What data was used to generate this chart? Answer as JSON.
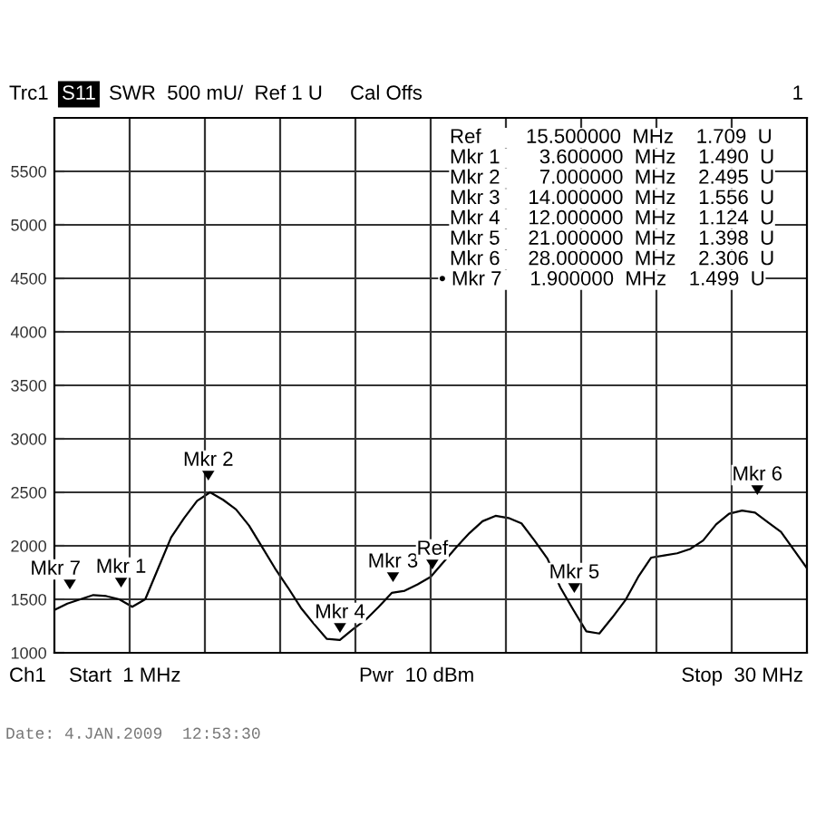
{
  "chart_data": {
    "type": "line",
    "categories": [
      null,
      null,
      null,
      null,
      null,
      null,
      null,
      null,
      null,
      null,
      null,
      null,
      null,
      null,
      null,
      null,
      null,
      null,
      null,
      null,
      null,
      null,
      null,
      null,
      null,
      null,
      null,
      null,
      null,
      null,
      null,
      null,
      null,
      null,
      null,
      null,
      null,
      null,
      null,
      null,
      null,
      null,
      null,
      null,
      null,
      null,
      null,
      null,
      null,
      null,
      null,
      null,
      null,
      null,
      null,
      null,
      null,
      null,
      null
    ],
    "series": [
      {
        "color": "#000000",
        "values": [
          1400,
          1460,
          1500,
          1540,
          1530,
          1500,
          1430,
          1500,
          1790,
          2080,
          2260,
          2420,
          2500,
          2430,
          2340,
          2190,
          1990,
          1790,
          1610,
          1420,
          1270,
          1130,
          1120,
          1220,
          1310,
          1430,
          1560,
          1580,
          1640,
          1710,
          1850,
          1990,
          2120,
          2230,
          2280,
          2260,
          2210,
          2050,
          1880,
          1610,
          1400,
          1200,
          1180,
          1330,
          1490,
          1710,
          1890,
          1910,
          1930,
          1970,
          2050,
          2200,
          2300,
          2330,
          2310,
          2220,
          2130,
          1960,
          1790
        ]
      }
    ],
    "ylim": [
      1000,
      6000
    ],
    "yticks": [
      1000,
      1500,
      2000,
      2500,
      3000,
      3500,
      4000,
      4500,
      5000,
      5500
    ],
    "grid": true,
    "legend": false,
    "annotations": [
      "Trc1",
      "S11",
      "SWR  500 mU/  Ref 1 U",
      "Cal Offs",
      "1",
      "Ref        15.500000  MHz    1.709  U",
      "Mkr 1       3.600000  MHz    1.490  U",
      "Mkr 2       7.000000  MHz    2.495  U",
      "Mkr 3     14.000000  MHz    1.556  U",
      "Mkr 4     12.000000  MHz    1.124  U",
      "Mkr 5     21.000000  MHz    1.398  U",
      "Mkr 6     28.000000  MHz    2.306  U",
      "• Mkr 7     1.900000  MHz    1.499  U",
      "Ch1",
      "Start  1 MHz",
      "Pwr  10 dBm",
      "Stop  30 MHz",
      "Date: 4.JAN.2009  12:53:30",
      "Mkr 7",
      "Mkr 1",
      "Mkr 2",
      "Mkr 4",
      "Mkr 3",
      "Ref",
      "Mkr 5",
      "Mkr 6"
    ]
  }
}
